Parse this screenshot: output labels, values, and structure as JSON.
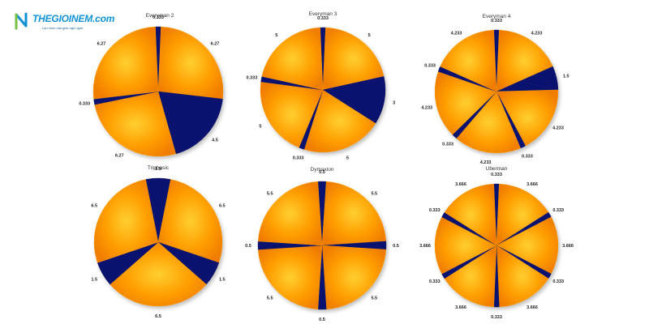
{
  "logo": {
    "brand": "THEGIOINEM.com",
    "tagline": "Lan chọn câu giấc ngủ ngon"
  },
  "colors": {
    "orange": "#ff9f00",
    "orange_light": "#ffcf30",
    "orange_dark": "#f07c00",
    "navy": "#0a1270"
  },
  "chart_data": [
    {
      "type": "pie",
      "title": "Everyman 2",
      "slices": [
        {
          "label": "0.333",
          "value": 0.333,
          "color": "navy"
        },
        {
          "label": "6.27",
          "value": 6.27,
          "color": "orange"
        },
        {
          "label": "4.5",
          "value": 4.5,
          "color": "navy"
        },
        {
          "label": "6.27",
          "value": 6.27,
          "color": "orange"
        },
        {
          "label": "0.333",
          "value": 0.333,
          "color": "navy"
        },
        {
          "label": "6.27",
          "value": 6.27,
          "color": "orange"
        }
      ]
    },
    {
      "type": "pie",
      "title": "Everyman 3",
      "slices": [
        {
          "label": "0.333",
          "value": 0.333,
          "color": "navy"
        },
        {
          "label": "5",
          "value": 5,
          "color": "orange"
        },
        {
          "label": "3",
          "value": 3,
          "color": "navy"
        },
        {
          "label": "5",
          "value": 5,
          "color": "orange"
        },
        {
          "label": "0.333",
          "value": 0.333,
          "color": "navy"
        },
        {
          "label": "5",
          "value": 5,
          "color": "orange"
        },
        {
          "label": "0.333",
          "value": 0.333,
          "color": "navy"
        },
        {
          "label": "5",
          "value": 5,
          "color": "orange"
        }
      ]
    },
    {
      "type": "pie",
      "title": "Everyman 4",
      "slices": [
        {
          "label": "0.333",
          "value": 0.333,
          "color": "navy"
        },
        {
          "label": "4.233",
          "value": 4.233,
          "color": "orange"
        },
        {
          "label": "1.5",
          "value": 1.5,
          "color": "navy"
        },
        {
          "label": "4.233",
          "value": 4.233,
          "color": "orange"
        },
        {
          "label": "0.333",
          "value": 0.333,
          "color": "navy"
        },
        {
          "label": "4.233",
          "value": 4.233,
          "color": "orange"
        },
        {
          "label": "0.333",
          "value": 0.333,
          "color": "navy"
        },
        {
          "label": "4.233",
          "value": 4.233,
          "color": "orange"
        },
        {
          "label": "0.333",
          "value": 0.333,
          "color": "navy"
        },
        {
          "label": "4.233",
          "value": 4.233,
          "color": "orange"
        }
      ]
    },
    {
      "type": "pie",
      "title": "Triphasic",
      "slices": [
        {
          "label": "1.5",
          "value": 1.5,
          "color": "navy"
        },
        {
          "label": "6.5",
          "value": 6.5,
          "color": "orange"
        },
        {
          "label": "1.5",
          "value": 1.5,
          "color": "navy"
        },
        {
          "label": "6.5",
          "value": 6.5,
          "color": "orange"
        },
        {
          "label": "1.5",
          "value": 1.5,
          "color": "navy"
        },
        {
          "label": "6.5",
          "value": 6.5,
          "color": "orange"
        }
      ]
    },
    {
      "type": "pie",
      "title": "Dymaxion",
      "slices": [
        {
          "label": "0.5",
          "value": 0.5,
          "color": "navy"
        },
        {
          "label": "5.5",
          "value": 5.5,
          "color": "orange"
        },
        {
          "label": "0.5",
          "value": 0.5,
          "color": "navy"
        },
        {
          "label": "5.5",
          "value": 5.5,
          "color": "orange"
        },
        {
          "label": "0.5",
          "value": 0.5,
          "color": "navy"
        },
        {
          "label": "5.5",
          "value": 5.5,
          "color": "orange"
        },
        {
          "label": "0.5",
          "value": 0.5,
          "color": "navy"
        },
        {
          "label": "5.5",
          "value": 5.5,
          "color": "orange"
        }
      ]
    },
    {
      "type": "pie",
      "title": "Uberman",
      "slices": [
        {
          "label": "0.333",
          "value": 0.333,
          "color": "navy"
        },
        {
          "label": "3.666",
          "value": 3.666,
          "color": "orange"
        },
        {
          "label": "0.333",
          "value": 0.333,
          "color": "navy"
        },
        {
          "label": "3.666",
          "value": 3.666,
          "color": "orange"
        },
        {
          "label": "0.333",
          "value": 0.333,
          "color": "navy"
        },
        {
          "label": "3.666",
          "value": 3.666,
          "color": "orange"
        },
        {
          "label": "0.333",
          "value": 0.333,
          "color": "navy"
        },
        {
          "label": "3.666",
          "value": 3.666,
          "color": "orange"
        },
        {
          "label": "0.333",
          "value": 0.333,
          "color": "navy"
        },
        {
          "label": "3.666",
          "value": 3.666,
          "color": "orange"
        },
        {
          "label": "0.333",
          "value": 0.333,
          "color": "navy"
        },
        {
          "label": "3.666",
          "value": 3.666,
          "color": "orange"
        }
      ]
    }
  ]
}
